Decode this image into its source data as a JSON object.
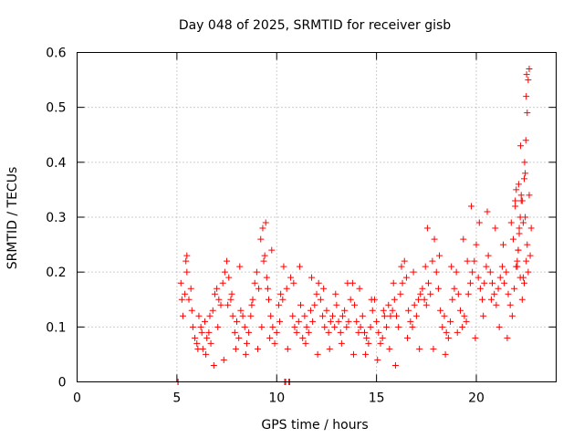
{
  "chart_data": {
    "type": "scatter",
    "title": "Day 048 of 2025, SRMTID for receiver gisb",
    "xlabel": "GPS time / hours",
    "ylabel": "SRMTID / TECUs",
    "xlim": [
      0,
      24
    ],
    "ylim": [
      0,
      0.6
    ],
    "x_ticks": [
      0,
      5,
      10,
      15,
      20
    ],
    "y_ticks": [
      0,
      0.1,
      0.2,
      0.3,
      0.4,
      0.5,
      0.6
    ],
    "x_tick_labels": [
      "0",
      "5",
      "10",
      "15",
      "20"
    ],
    "y_tick_labels": [
      "0",
      "0.1",
      "0.2",
      "0.3",
      "0.4",
      "0.5",
      "0.6"
    ],
    "grid": true,
    "marker": "+",
    "series": [
      {
        "name": "SRMTID",
        "color": "#ff0000",
        "x": [
          5.05,
          5.06,
          10.4,
          10.45,
          10.6,
          10.65,
          5.2,
          5.3,
          5.4,
          5.5,
          5.6,
          5.7,
          5.8,
          5.9,
          6.0,
          6.1,
          6.2,
          6.3,
          6.4,
          6.5,
          6.6,
          6.7,
          6.8,
          6.9,
          7.0,
          7.1,
          7.2,
          7.3,
          7.4,
          7.5,
          7.6,
          7.7,
          7.8,
          7.9,
          8.0,
          8.1,
          8.2,
          8.3,
          8.4,
          8.5,
          8.6,
          8.7,
          8.8,
          8.9,
          9.0,
          9.1,
          9.2,
          9.3,
          9.4,
          9.5,
          9.6,
          9.7,
          9.8,
          9.9,
          10.0,
          10.1,
          10.2,
          10.3,
          10.5,
          10.7,
          10.8,
          10.9,
          11.0,
          11.1,
          11.2,
          11.3,
          11.4,
          11.5,
          11.6,
          11.7,
          11.8,
          11.9,
          12.0,
          12.1,
          12.2,
          12.3,
          12.4,
          12.5,
          12.6,
          12.7,
          12.8,
          12.9,
          13.0,
          13.1,
          13.2,
          13.3,
          13.4,
          13.5,
          13.6,
          13.7,
          13.8,
          13.9,
          14.0,
          14.1,
          14.2,
          14.3,
          14.4,
          14.5,
          14.6,
          14.7,
          14.8,
          14.9,
          15.0,
          15.1,
          15.2,
          15.3,
          15.4,
          15.5,
          15.6,
          15.7,
          15.8,
          15.9,
          16.0,
          16.1,
          16.2,
          16.3,
          16.4,
          16.5,
          16.6,
          16.7,
          16.8,
          16.9,
          17.0,
          17.1,
          17.2,
          17.3,
          17.4,
          17.5,
          17.6,
          17.7,
          17.8,
          17.9,
          18.0,
          18.1,
          18.2,
          18.3,
          18.4,
          18.5,
          18.6,
          18.7,
          18.8,
          18.9,
          19.0,
          19.1,
          19.2,
          19.3,
          19.4,
          19.5,
          19.6,
          19.7,
          19.8,
          19.9,
          20.0,
          20.1,
          20.2,
          20.3,
          20.4,
          20.5,
          20.6,
          20.7,
          20.8,
          20.9,
          21.0,
          21.1,
          21.2,
          21.3,
          21.4,
          21.5,
          21.6,
          21.7,
          21.8,
          21.9,
          22.0,
          22.1,
          22.2,
          22.3,
          22.4,
          22.5,
          22.6,
          22.7,
          5.25,
          5.45,
          5.5,
          5.75,
          6.05,
          6.25,
          6.45,
          6.65,
          6.85,
          7.05,
          7.35,
          7.55,
          7.75,
          7.95,
          8.15,
          8.45,
          8.75,
          9.05,
          9.25,
          9.35,
          9.45,
          9.55,
          9.65,
          9.75,
          10.15,
          10.35,
          10.55,
          10.85,
          11.15,
          11.45,
          11.75,
          12.05,
          12.35,
          12.65,
          12.95,
          13.25,
          13.55,
          13.85,
          14.15,
          14.45,
          14.75,
          15.05,
          15.35,
          15.65,
          15.85,
          15.95,
          16.25,
          16.55,
          16.85,
          17.15,
          17.45,
          17.55,
          17.85,
          18.15,
          18.45,
          18.75,
          19.05,
          19.35,
          19.55,
          19.75,
          19.95,
          20.15,
          20.35,
          20.55,
          20.75,
          20.95,
          21.15,
          21.35,
          21.55,
          21.75,
          21.85,
          21.95,
          22.05,
          22.15,
          22.25,
          22.35,
          22.45,
          22.55,
          22.65,
          22.75,
          22.05,
          22.1,
          22.15,
          22.2,
          22.25,
          22.3,
          22.35,
          22.4,
          22.42,
          22.45,
          22.48,
          22.5,
          22.52,
          22.6,
          22.65,
          21.95,
          22.0,
          22.12,
          22.22,
          22.55
        ],
        "y": [
          0.0,
          0.0,
          0.0,
          0.0,
          0.0,
          0.0,
          0.18,
          0.12,
          0.16,
          0.23,
          0.15,
          0.17,
          0.1,
          0.08,
          0.07,
          0.12,
          0.1,
          0.06,
          0.11,
          0.08,
          0.09,
          0.07,
          0.13,
          0.16,
          0.17,
          0.15,
          0.14,
          0.18,
          0.2,
          0.22,
          0.19,
          0.15,
          0.12,
          0.09,
          0.11,
          0.08,
          0.13,
          0.12,
          0.1,
          0.07,
          0.09,
          0.12,
          0.15,
          0.18,
          0.2,
          0.17,
          0.26,
          0.28,
          0.23,
          0.19,
          0.15,
          0.12,
          0.1,
          0.07,
          0.09,
          0.14,
          0.16,
          0.15,
          0.17,
          0.19,
          0.12,
          0.1,
          0.09,
          0.11,
          0.14,
          0.08,
          0.12,
          0.1,
          0.09,
          0.13,
          0.11,
          0.14,
          0.16,
          0.18,
          0.15,
          0.12,
          0.1,
          0.13,
          0.09,
          0.11,
          0.12,
          0.1,
          0.14,
          0.11,
          0.09,
          0.12,
          0.13,
          0.1,
          0.11,
          0.15,
          0.18,
          0.14,
          0.11,
          0.09,
          0.1,
          0.12,
          0.09,
          0.08,
          0.07,
          0.1,
          0.13,
          0.15,
          0.11,
          0.09,
          0.07,
          0.08,
          0.12,
          0.1,
          0.14,
          0.12,
          0.13,
          0.15,
          0.12,
          0.1,
          0.16,
          0.18,
          0.22,
          0.19,
          0.13,
          0.11,
          0.1,
          0.14,
          0.12,
          0.15,
          0.16,
          0.17,
          0.15,
          0.14,
          0.18,
          0.16,
          0.22,
          0.26,
          0.2,
          0.17,
          0.13,
          0.1,
          0.12,
          0.09,
          0.08,
          0.11,
          0.15,
          0.17,
          0.2,
          0.16,
          0.13,
          0.1,
          0.12,
          0.11,
          0.16,
          0.18,
          0.2,
          0.22,
          0.25,
          0.19,
          0.17,
          0.15,
          0.18,
          0.21,
          0.23,
          0.2,
          0.18,
          0.16,
          0.14,
          0.17,
          0.19,
          0.21,
          0.18,
          0.2,
          0.16,
          0.14,
          0.12,
          0.17,
          0.21,
          0.24,
          0.19,
          0.15,
          0.18,
          0.22,
          0.2,
          0.23,
          0.15,
          0.22,
          0.2,
          0.13,
          0.06,
          0.09,
          0.05,
          0.12,
          0.03,
          0.1,
          0.04,
          0.14,
          0.16,
          0.06,
          0.21,
          0.05,
          0.14,
          0.06,
          0.1,
          0.22,
          0.29,
          0.17,
          0.08,
          0.24,
          0.11,
          0.21,
          0.06,
          0.18,
          0.21,
          0.07,
          0.19,
          0.05,
          0.17,
          0.06,
          0.16,
          0.07,
          0.18,
          0.05,
          0.17,
          0.05,
          0.15,
          0.04,
          0.13,
          0.06,
          0.18,
          0.03,
          0.21,
          0.08,
          0.2,
          0.06,
          0.21,
          0.28,
          0.06,
          0.23,
          0.05,
          0.21,
          0.09,
          0.26,
          0.22,
          0.32,
          0.08,
          0.29,
          0.12,
          0.31,
          0.15,
          0.28,
          0.1,
          0.25,
          0.08,
          0.29,
          0.26,
          0.33,
          0.22,
          0.28,
          0.33,
          0.19,
          0.3,
          0.25,
          0.34,
          0.28,
          0.21,
          0.24,
          0.27,
          0.3,
          0.34,
          0.33,
          0.29,
          0.37,
          0.4,
          0.38,
          0.44,
          0.52,
          0.56,
          0.55,
          0.57,
          0.32,
          0.35,
          0.36,
          0.43,
          0.49
        ]
      }
    ]
  }
}
